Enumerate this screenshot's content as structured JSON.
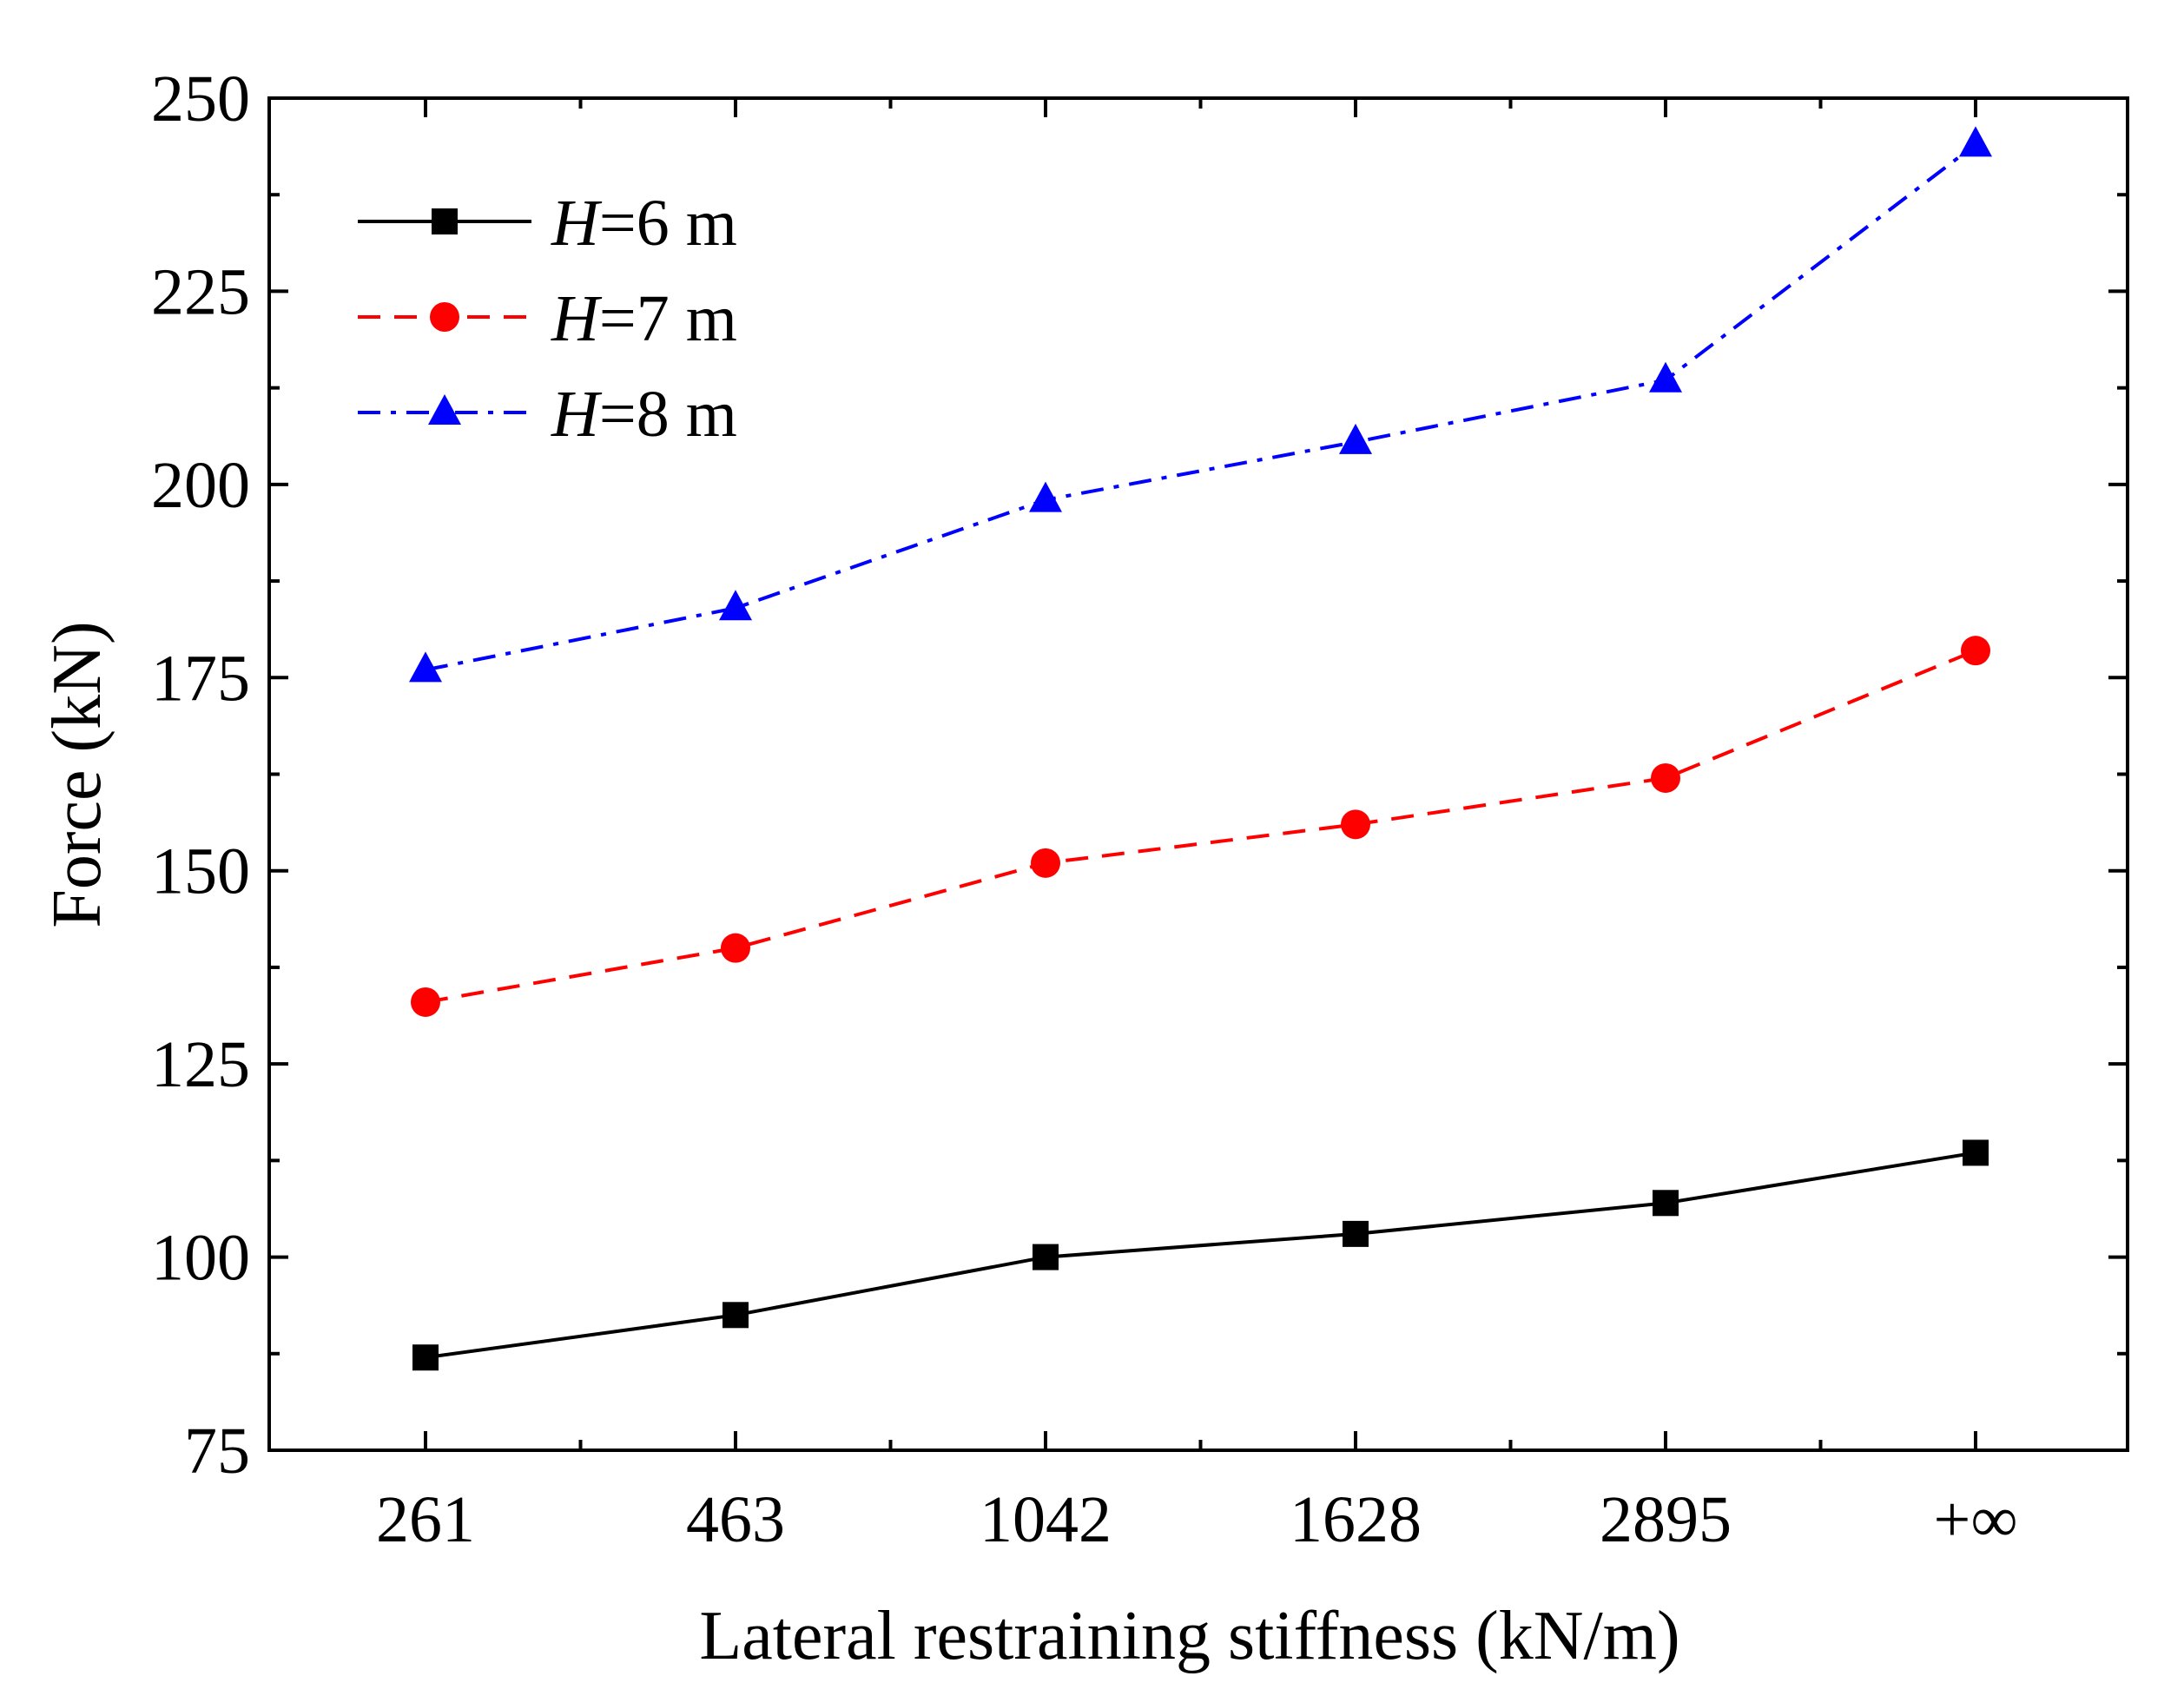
{
  "chart_data": {
    "type": "line",
    "title": "",
    "xlabel": "Lateral restraining stiffness (kN/m)",
    "ylabel": "Force (kN)",
    "categories": [
      "261",
      "463",
      "1042",
      "1628",
      "2895",
      "+∞"
    ],
    "ylim": [
      75,
      250
    ],
    "yticks": [
      75,
      100,
      125,
      150,
      175,
      200,
      225,
      250
    ],
    "grid": false,
    "legend_position": "top-left",
    "series": [
      {
        "name_italic": "H",
        "name_rest": "=6 m",
        "color": "#000000",
        "marker": "square",
        "dash": "solid",
        "values": [
          87,
          92.5,
          100,
          103,
          107,
          113.5
        ]
      },
      {
        "name_italic": "H",
        "name_rest": "=7 m",
        "color": "#ff0000",
        "marker": "circle",
        "dash": "dashed",
        "values": [
          133,
          140,
          151,
          156,
          162,
          178.5
        ]
      },
      {
        "name_italic": "H",
        "name_rest": "=8 m",
        "color": "#0000ff",
        "marker": "triangle",
        "dash": "dashdot",
        "values": [
          176,
          184,
          198,
          205.5,
          213.5,
          244
        ]
      }
    ]
  }
}
